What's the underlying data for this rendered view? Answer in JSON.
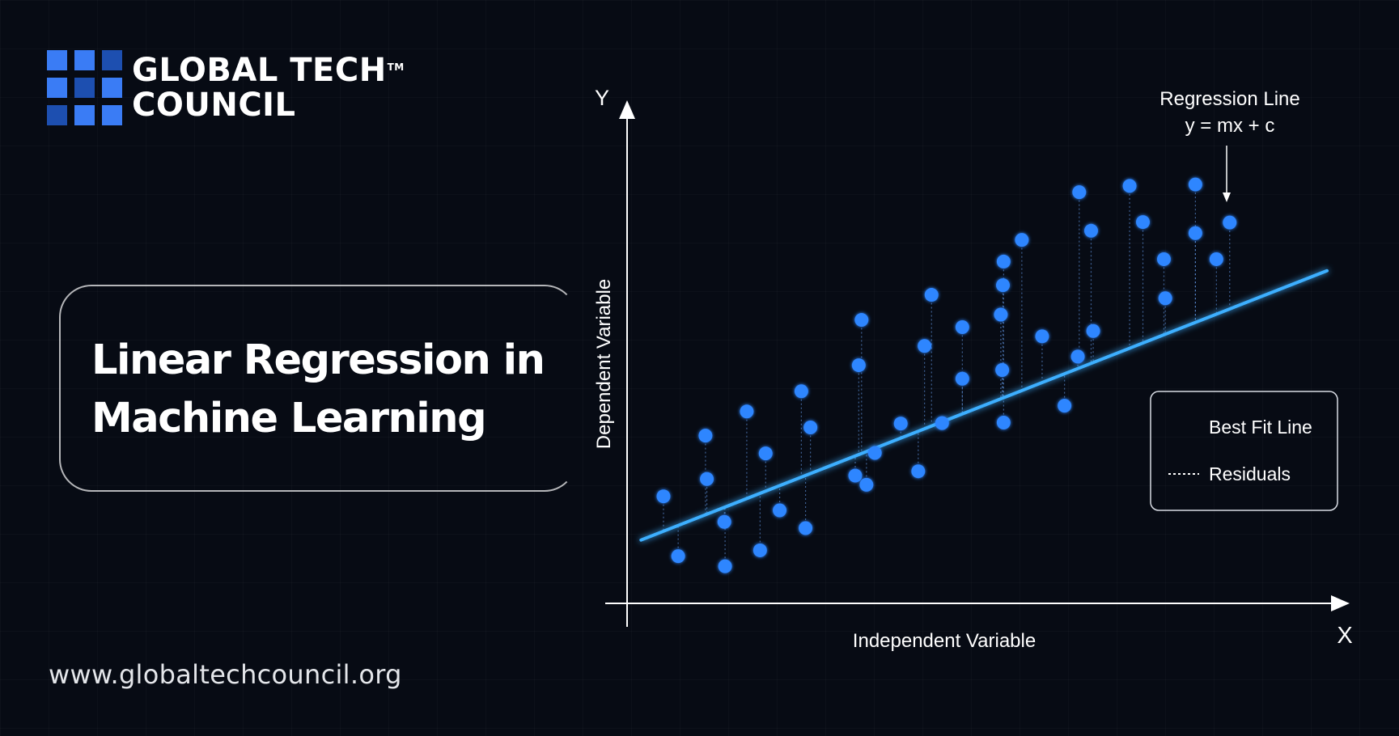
{
  "brand": {
    "name_line1": "GLOBAL TECH",
    "name_line2": "COUNCIL",
    "trademark": "TM",
    "logo_colors": [
      "#3a7cf5",
      "#3a7cf5",
      "#1d4fb0",
      "#3a7cf5",
      "#1d4fb0",
      "#3a7cf5",
      "#1d4fb0",
      "#3a7cf5",
      "#3a7cf5"
    ],
    "website": "www.globaltechcouncil.org"
  },
  "title": {
    "line1": "Linear Regression in",
    "line2": "Machine Learning"
  },
  "chart_data": {
    "type": "scatter",
    "xlabel": "Independent Variable",
    "ylabel": "Dependent Variable",
    "x_axis_letter": "X",
    "y_axis_letter": "Y",
    "xlim": [
      0,
      100
    ],
    "ylim": [
      0,
      100
    ],
    "grid": false,
    "legend_position": "bottom-right",
    "legend": [
      {
        "label": "Best Fit Line",
        "style": "solid"
      },
      {
        "label": "Residuals",
        "style": "dashed"
      }
    ],
    "annotation": {
      "line1": "Regression Line",
      "line2": "y = mx + c"
    },
    "regression_line": {
      "slope": 0.57,
      "intercept": 12,
      "x_range": [
        2,
        100
      ]
    },
    "colors": {
      "point": "#2e86ff",
      "line": "#3dafff",
      "axis": "#ffffff",
      "background": "#070b14"
    },
    "points": [
      [
        5.2,
        22.2
      ],
      [
        7.3,
        9.8
      ],
      [
        11.2,
        34.8
      ],
      [
        11.4,
        25.8
      ],
      [
        13.9,
        16.9
      ],
      [
        14.0,
        7.7
      ],
      [
        17.1,
        39.8
      ],
      [
        19.0,
        11.0
      ],
      [
        19.8,
        31.1
      ],
      [
        21.8,
        19.3
      ],
      [
        24.9,
        44.0
      ],
      [
        25.5,
        15.6
      ],
      [
        26.2,
        36.5
      ],
      [
        32.6,
        26.5
      ],
      [
        33.1,
        49.4
      ],
      [
        33.5,
        58.8
      ],
      [
        34.2,
        24.6
      ],
      [
        35.4,
        31.2
      ],
      [
        39.1,
        37.3
      ],
      [
        41.6,
        27.4
      ],
      [
        42.5,
        53.4
      ],
      [
        43.5,
        64.0
      ],
      [
        45.0,
        37.4
      ],
      [
        47.9,
        57.3
      ],
      [
        47.9,
        46.6
      ],
      [
        53.4,
        59.9
      ],
      [
        53.6,
        48.4
      ],
      [
        53.7,
        66.0
      ],
      [
        53.8,
        70.9
      ],
      [
        53.8,
        37.5
      ],
      [
        56.4,
        75.4
      ],
      [
        59.3,
        55.4
      ],
      [
        62.5,
        41.0
      ],
      [
        64.4,
        51.2
      ],
      [
        64.6,
        85.3
      ],
      [
        66.3,
        77.3
      ],
      [
        66.6,
        56.5
      ],
      [
        71.8,
        86.6
      ],
      [
        73.7,
        79.1
      ],
      [
        76.7,
        71.4
      ],
      [
        76.9,
        63.3
      ],
      [
        81.2,
        86.9
      ],
      [
        81.2,
        76.8
      ],
      [
        84.2,
        71.4
      ],
      [
        86.1,
        79.0
      ]
    ]
  }
}
